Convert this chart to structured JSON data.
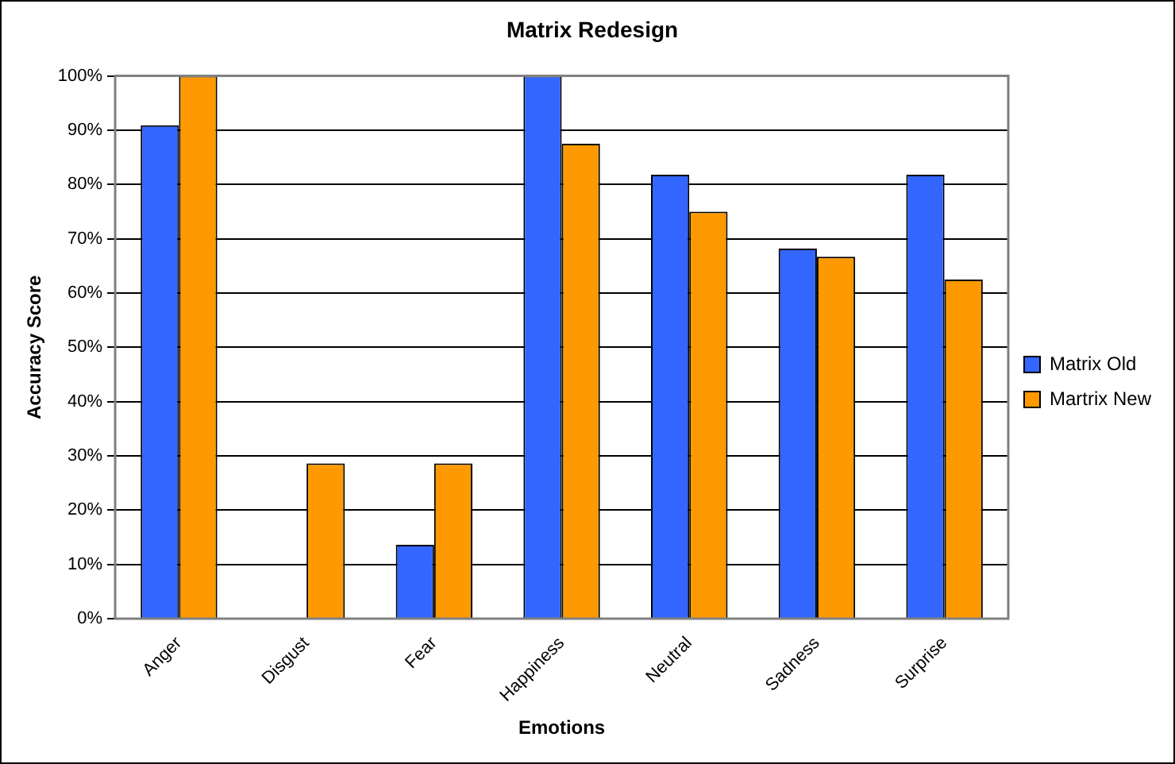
{
  "chart_data": {
    "type": "bar",
    "title": "Matrix Redesign",
    "xlabel": "Emotions",
    "ylabel": "Accuracy Score",
    "categories": [
      "Anger",
      "Disgust",
      "Fear",
      "Happiness",
      "Neutral",
      "Sadness",
      "Surprise"
    ],
    "series": [
      {
        "name": "Matrix Old",
        "color": "#3366ff",
        "values": [
          90.9,
          0,
          13.6,
          100,
          81.8,
          68.2,
          81.8
        ]
      },
      {
        "name": "Martrix New",
        "color": "#ff9900",
        "values": [
          100,
          28.6,
          28.6,
          87.5,
          75,
          66.7,
          62.5
        ]
      }
    ],
    "ylim": [
      0,
      100
    ],
    "yticks": [
      {
        "value": 0,
        "label": "0%"
      },
      {
        "value": 10,
        "label": "10%"
      },
      {
        "value": 20,
        "label": "20%"
      },
      {
        "value": 30,
        "label": "30%"
      },
      {
        "value": 40,
        "label": "40%"
      },
      {
        "value": 50,
        "label": "50%"
      },
      {
        "value": 60,
        "label": "60%"
      },
      {
        "value": 70,
        "label": "70%"
      },
      {
        "value": 80,
        "label": "80%"
      },
      {
        "value": 90,
        "label": "90%"
      },
      {
        "value": 100,
        "label": "100%"
      }
    ],
    "grid": "y",
    "legend": "right"
  }
}
